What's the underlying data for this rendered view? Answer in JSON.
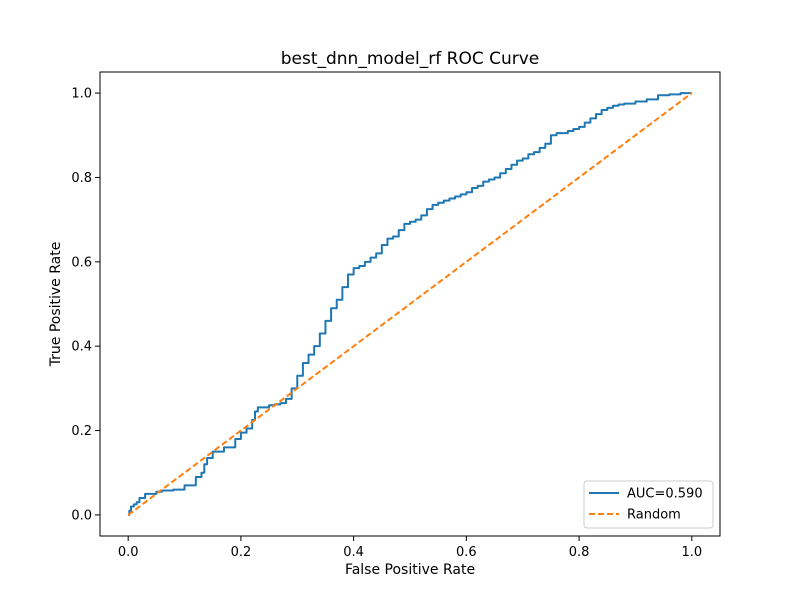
{
  "chart_data": {
    "type": "line",
    "title": "best_dnn_model_rf ROC Curve",
    "xlabel": "False Positive Rate",
    "ylabel": "True Positive Rate",
    "xlim": [
      -0.05,
      1.05
    ],
    "ylim": [
      -0.05,
      1.05
    ],
    "xticks": [
      0.0,
      0.2,
      0.4,
      0.6,
      0.8,
      1.0
    ],
    "xtick_labels": [
      "0.0",
      "0.2",
      "0.4",
      "0.6",
      "0.8",
      "1.0"
    ],
    "yticks": [
      0.0,
      0.2,
      0.4,
      0.6,
      0.8,
      1.0
    ],
    "ytick_labels": [
      "0.0",
      "0.2",
      "0.4",
      "0.6",
      "0.8",
      "1.0"
    ],
    "grid": false,
    "legend_position": "lower right",
    "series": [
      {
        "name": "AUC=0.590",
        "color": "#1f77b4",
        "style": "solid",
        "step": true,
        "x": [
          0.0,
          0.002,
          0.005,
          0.01,
          0.015,
          0.02,
          0.03,
          0.05,
          0.06,
          0.08,
          0.1,
          0.12,
          0.13,
          0.135,
          0.14,
          0.15,
          0.17,
          0.19,
          0.2,
          0.21,
          0.22,
          0.225,
          0.23,
          0.25,
          0.26,
          0.27,
          0.28,
          0.29,
          0.3,
          0.31,
          0.32,
          0.33,
          0.34,
          0.35,
          0.36,
          0.37,
          0.38,
          0.39,
          0.4,
          0.41,
          0.42,
          0.43,
          0.44,
          0.45,
          0.46,
          0.47,
          0.48,
          0.49,
          0.5,
          0.51,
          0.52,
          0.53,
          0.54,
          0.55,
          0.56,
          0.57,
          0.58,
          0.59,
          0.6,
          0.61,
          0.62,
          0.63,
          0.64,
          0.65,
          0.66,
          0.67,
          0.68,
          0.69,
          0.7,
          0.71,
          0.72,
          0.73,
          0.74,
          0.75,
          0.76,
          0.77,
          0.78,
          0.79,
          0.8,
          0.81,
          0.82,
          0.83,
          0.84,
          0.85,
          0.86,
          0.87,
          0.88,
          0.9,
          0.92,
          0.94,
          0.96,
          0.98,
          1.0
        ],
        "y": [
          0.0,
          0.01,
          0.02,
          0.025,
          0.03,
          0.04,
          0.05,
          0.055,
          0.058,
          0.06,
          0.07,
          0.09,
          0.1,
          0.12,
          0.135,
          0.15,
          0.16,
          0.18,
          0.195,
          0.205,
          0.225,
          0.245,
          0.255,
          0.26,
          0.262,
          0.265,
          0.275,
          0.3,
          0.33,
          0.36,
          0.38,
          0.4,
          0.43,
          0.46,
          0.49,
          0.51,
          0.54,
          0.57,
          0.585,
          0.59,
          0.6,
          0.61,
          0.62,
          0.64,
          0.655,
          0.66,
          0.675,
          0.69,
          0.695,
          0.7,
          0.71,
          0.725,
          0.735,
          0.74,
          0.745,
          0.75,
          0.755,
          0.76,
          0.765,
          0.775,
          0.78,
          0.79,
          0.795,
          0.8,
          0.81,
          0.82,
          0.83,
          0.84,
          0.845,
          0.855,
          0.86,
          0.87,
          0.88,
          0.9,
          0.905,
          0.905,
          0.91,
          0.915,
          0.92,
          0.93,
          0.94,
          0.95,
          0.96,
          0.965,
          0.97,
          0.973,
          0.975,
          0.98,
          0.985,
          0.995,
          0.997,
          1.0,
          1.0
        ]
      },
      {
        "name": "Random",
        "color": "#ff7f0e",
        "style": "dashed",
        "step": false,
        "x": [
          0.0,
          1.0
        ],
        "y": [
          0.0,
          1.0
        ]
      }
    ],
    "legend": [
      {
        "label": "AUC=0.590",
        "color": "#1f77b4",
        "style": "solid"
      },
      {
        "label": "Random",
        "color": "#ff7f0e",
        "style": "dashed"
      }
    ]
  }
}
